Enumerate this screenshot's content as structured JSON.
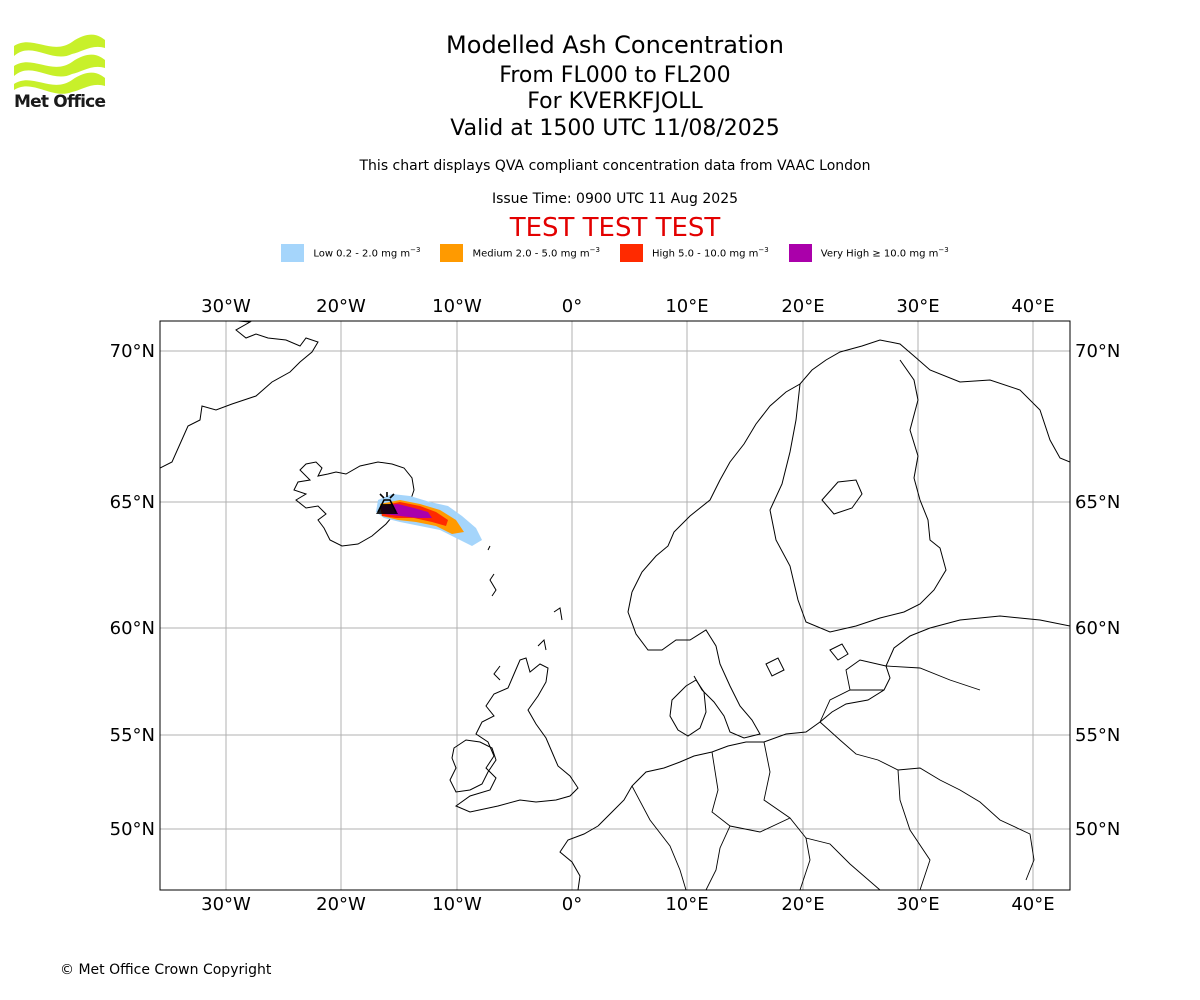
{
  "header": {
    "logo_text": "Met Office",
    "title": "Modelled Ash Concentration",
    "level_range": "From FL000 to FL200",
    "volcano": "For KVERKFJOLL",
    "valid_time": "Valid at 1500 UTC 11/08/2025",
    "note": "This chart displays QVA compliant concentration data from VAAC London",
    "issue_time": "Issue Time: 0900 UTC 11 Aug 2025",
    "test_banner": "TEST TEST TEST"
  },
  "legend": [
    {
      "label": "Low 0.2 - 2.0 mg m",
      "unit_exp": "−3",
      "color": "#a5d5fb"
    },
    {
      "label": "Medium 2.0 - 5.0 mg m",
      "unit_exp": "−3",
      "color": "#ff9a00"
    },
    {
      "label": "High 5.0 - 10.0 mg m",
      "unit_exp": "−3",
      "color": "#ff2a00"
    },
    {
      "label": "Very High  ≥  10.0 mg m",
      "unit_exp": "−3",
      "color": "#aa00aa"
    }
  ],
  "map": {
    "lon_ticks": [
      "30°W",
      "20°W",
      "10°W",
      "0°",
      "10°E",
      "20°E",
      "30°E",
      "40°E"
    ],
    "lat_ticks": [
      "70°N",
      "65°N",
      "60°N",
      "55°N",
      "50°N"
    ],
    "volcano_symbol": "volcano-icon",
    "gridline_color": "#b0b0b0"
  },
  "footer": {
    "copyright": "© Met Office Crown Copyright"
  }
}
